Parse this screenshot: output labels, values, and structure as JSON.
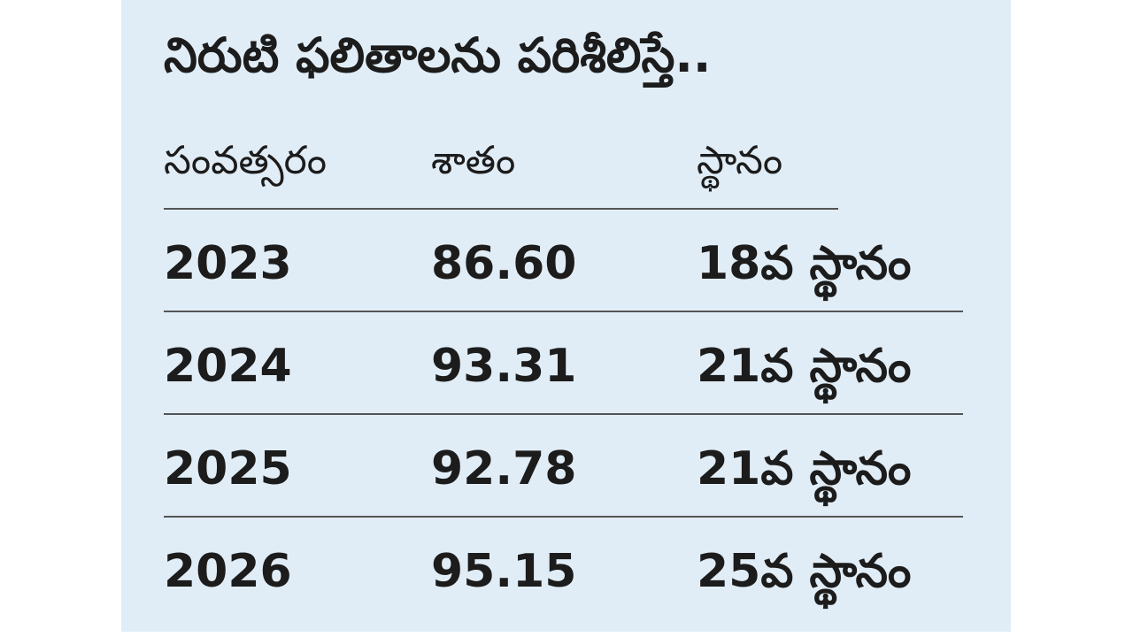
{
  "header": {
    "title": "నిరుటి ఫలితాలను పరిశీలిస్తే.."
  },
  "table": {
    "columns": [
      "సంవత్సరం",
      "శాతం",
      "స్థానం"
    ],
    "rows": [
      [
        "2023",
        "86.60",
        "18వ స్థానం"
      ],
      [
        "2024",
        "93.31",
        "21వ స్థానం"
      ],
      [
        "2025",
        "92.78",
        "21వ స్థానం"
      ],
      [
        "2026",
        "95.15",
        "25వ స్థానం"
      ]
    ]
  }
}
